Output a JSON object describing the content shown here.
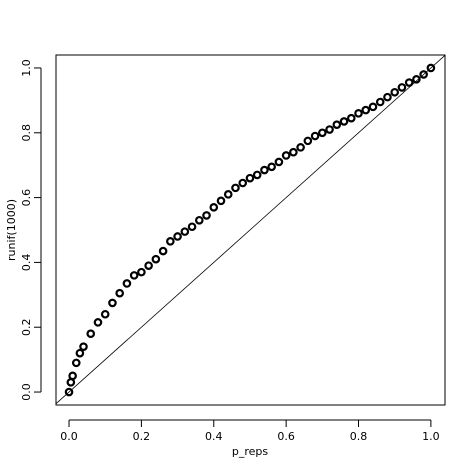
{
  "chart_data": {
    "type": "scatter",
    "x_label": "p_reps",
    "y_label": "runif(1000)",
    "x": [
      0,
      0.005,
      0.01,
      0.02,
      0.03,
      0.04,
      0.06,
      0.08,
      0.1,
      0.12,
      0.14,
      0.16,
      0.18,
      0.2,
      0.22,
      0.24,
      0.26,
      0.28,
      0.3,
      0.32,
      0.34,
      0.36,
      0.38,
      0.4,
      0.42,
      0.44,
      0.46,
      0.48,
      0.5,
      0.52,
      0.54,
      0.56,
      0.58,
      0.6,
      0.62,
      0.64,
      0.66,
      0.68,
      0.7,
      0.72,
      0.74,
      0.76,
      0.78,
      0.8,
      0.82,
      0.84,
      0.86,
      0.88,
      0.9,
      0.92,
      0.94,
      0.96,
      0.98,
      1.0
    ],
    "values": [
      0,
      0.03,
      0.05,
      0.09,
      0.12,
      0.14,
      0.18,
      0.215,
      0.24,
      0.275,
      0.305,
      0.335,
      0.36,
      0.37,
      0.39,
      0.41,
      0.435,
      0.465,
      0.48,
      0.495,
      0.51,
      0.53,
      0.545,
      0.57,
      0.59,
      0.61,
      0.63,
      0.645,
      0.66,
      0.67,
      0.685,
      0.695,
      0.71,
      0.73,
      0.74,
      0.755,
      0.775,
      0.79,
      0.8,
      0.81,
      0.825,
      0.835,
      0.845,
      0.86,
      0.87,
      0.88,
      0.895,
      0.91,
      0.925,
      0.94,
      0.955,
      0.965,
      0.98,
      1.0
    ],
    "color": "#000000",
    "xlim": [
      -0.036,
      1.039
    ],
    "ylim": [
      -0.04,
      1.04
    ],
    "xticks": [
      {
        "value": 0,
        "label": "0.0"
      },
      0.2,
      0.4,
      0.6,
      0.8,
      {
        "value": 1,
        "label": "1.0"
      }
    ],
    "yticks": [
      {
        "value": 0,
        "label": "0.0"
      },
      0.2,
      0.4,
      0.6,
      0.8,
      {
        "value": 1,
        "label": "1.0"
      }
    ],
    "grid": false
  }
}
